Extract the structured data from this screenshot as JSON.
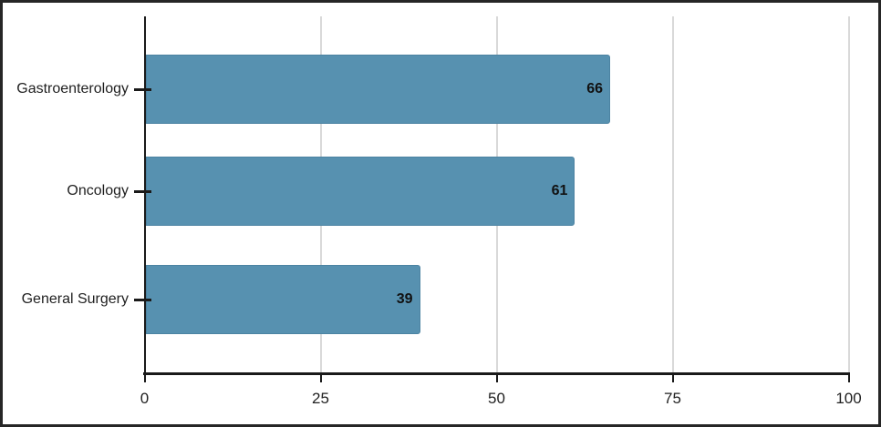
{
  "chart_data": {
    "type": "bar",
    "orientation": "horizontal",
    "title": "",
    "xlabel": "",
    "ylabel": "",
    "categories": [
      "Gastroenterology",
      "Oncology",
      "General Surgery"
    ],
    "values": [
      66,
      61,
      39
    ],
    "value_labels": [
      "66",
      "61",
      "39"
    ],
    "xlim": [
      0,
      100
    ],
    "x_ticks": [
      0,
      25,
      50,
      75,
      100
    ],
    "x_tick_labels": [
      "0",
      "25",
      "50",
      "75",
      "100"
    ],
    "grid": true,
    "legend": "none",
    "colors": {
      "bar_fill": "#5791b0",
      "bar_edge": "#4c83a2",
      "gridline": "#d9d9d9",
      "axis": "#1a1a1a",
      "text": "#1f1f1f",
      "value_label": "#111111",
      "frame_border": "#262626",
      "background": "#ffffff"
    }
  }
}
